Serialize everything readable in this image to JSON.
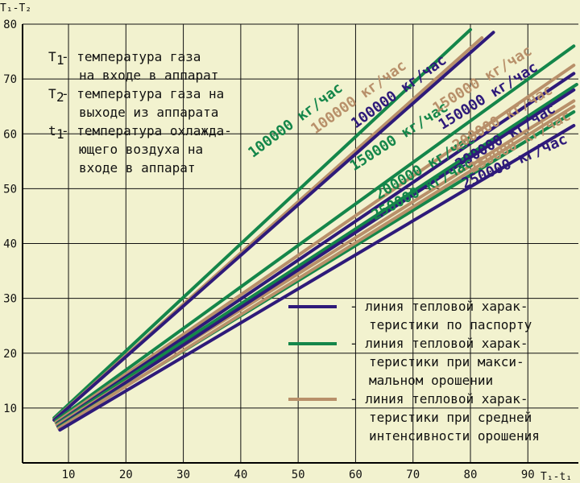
{
  "colors": {
    "background": "#f2f2cf",
    "grid": "#111111",
    "passport": "#2e1a7a",
    "max": "#14864a",
    "mid": "#b8906a"
  },
  "chart_data": {
    "type": "line",
    "ylabel": "T₁-T₂",
    "xlabel": "T₁-t₁",
    "xlim": [
      2,
      98.8
    ],
    "ylim": [
      0,
      80
    ],
    "xticks": [
      10,
      20,
      30,
      40,
      50,
      60,
      70,
      80,
      90
    ],
    "yticks": [
      10,
      20,
      30,
      40,
      50,
      60,
      70,
      80
    ],
    "grid": true,
    "series": [
      {
        "group": "max",
        "label": "100000 кг/час",
        "x": [
          7.5,
          80
        ],
        "y": [
          8.2,
          79
        ]
      },
      {
        "group": "mid",
        "label": "100000 кг/час",
        "x": [
          7.5,
          82
        ],
        "y": [
          7.9,
          77.5
        ]
      },
      {
        "group": "passport",
        "label": "100000 кг/час",
        "x": [
          7.5,
          84
        ],
        "y": [
          7.8,
          78.5
        ]
      },
      {
        "group": "max",
        "label": "150000 кг/час",
        "x": [
          7.8,
          98
        ],
        "y": [
          7.7,
          76
        ]
      },
      {
        "group": "mid",
        "label": "150000 кг/час",
        "x": [
          7.8,
          98
        ],
        "y": [
          7.4,
          72.5
        ]
      },
      {
        "group": "passport",
        "label": "150000 кг/час",
        "x": [
          8.0,
          98
        ],
        "y": [
          7.2,
          71
        ]
      },
      {
        "group": "max",
        "label": "200000 кг/час",
        "x": [
          8.0,
          98.5
        ],
        "y": [
          7.1,
          69
        ]
      },
      {
        "group": "mid",
        "label": "200000 кг/час",
        "x": [
          8.0,
          98
        ],
        "y": [
          6.9,
          66
        ]
      },
      {
        "group": "passport",
        "label": "200000 кг/час",
        "x": [
          8.2,
          98
        ],
        "y": [
          6.6,
          68
        ]
      },
      {
        "group": "max",
        "label": "250000 кг/час",
        "x": [
          8.3,
          98
        ],
        "y": [
          6.5,
          64
        ]
      },
      {
        "group": "mid",
        "label": "250000 кг/час",
        "x": [
          8.3,
          98
        ],
        "y": [
          6.3,
          65
        ]
      },
      {
        "group": "passport",
        "label": "250000 кг/час",
        "x": [
          8.5,
          98
        ],
        "y": [
          6.0,
          61.5
        ]
      }
    ],
    "labels": [
      {
        "text": "100000 кг/час",
        "color": "max",
        "x": 50,
        "y": 61.8,
        "angle": -37
      },
      {
        "text": "100000 кг/час",
        "color": "mid",
        "x": 61,
        "y": 66,
        "angle": -36
      },
      {
        "text": "100000 кг/час",
        "color": "passport",
        "x": 68,
        "y": 67,
        "angle": -36
      },
      {
        "text": "150000 кг/час",
        "color": "max",
        "x": 68,
        "y": 58.8,
        "angle": -33
      },
      {
        "text": "150000 кг/час",
        "color": "passport",
        "x": 83.5,
        "y": 66.2,
        "angle": -32
      },
      {
        "text": "150000 кг/час",
        "color": "mid",
        "x": 82.5,
        "y": 69.2,
        "angle": -32
      },
      {
        "text": "200000 кг/час",
        "color": "max",
        "x": 72.5,
        "y": 53.3,
        "angle": -31
      },
      {
        "text": "200000 кг/час",
        "color": "mid",
        "x": 86,
        "y": 62.2,
        "angle": -31
      },
      {
        "text": "200000 кг/час",
        "color": "passport",
        "x": 86.5,
        "y": 58.8,
        "angle": -31
      },
      {
        "text": "250000 кг/час",
        "color": "max",
        "x": 72,
        "y": 49.2,
        "angle": -29
      },
      {
        "text": "250000 кг/час",
        "color": "mid",
        "x": 89,
        "y": 57.8,
        "angle": -29
      },
      {
        "text": "250000 кг/час",
        "color": "passport",
        "x": 88,
        "y": 54.2,
        "angle": -24
      }
    ],
    "note": [
      {
        "sym": "T",
        "sub": "1",
        "lines": [
          "- температура газа",
          "на входе в аппарат"
        ]
      },
      {
        "sym": "T",
        "sub": "2",
        "lines": [
          "- температура газа на",
          "выходе из аппарата"
        ]
      },
      {
        "sym": "t",
        "sub": "1",
        "lines": [
          "- температура охлажда-",
          "ющего воздуха на",
          "входе в аппарат"
        ]
      }
    ],
    "legend": [
      {
        "group": "passport",
        "lines": [
          "- линия тепловой харак-",
          "теристики по паспорту"
        ]
      },
      {
        "group": "max",
        "lines": [
          "- линия тепловой харак-",
          "теристики при макси-",
          "мальном орошении"
        ]
      },
      {
        "group": "mid",
        "lines": [
          "- линия тепловой харак-",
          "теристики при средней",
          "интенсивности орошения"
        ]
      }
    ]
  }
}
